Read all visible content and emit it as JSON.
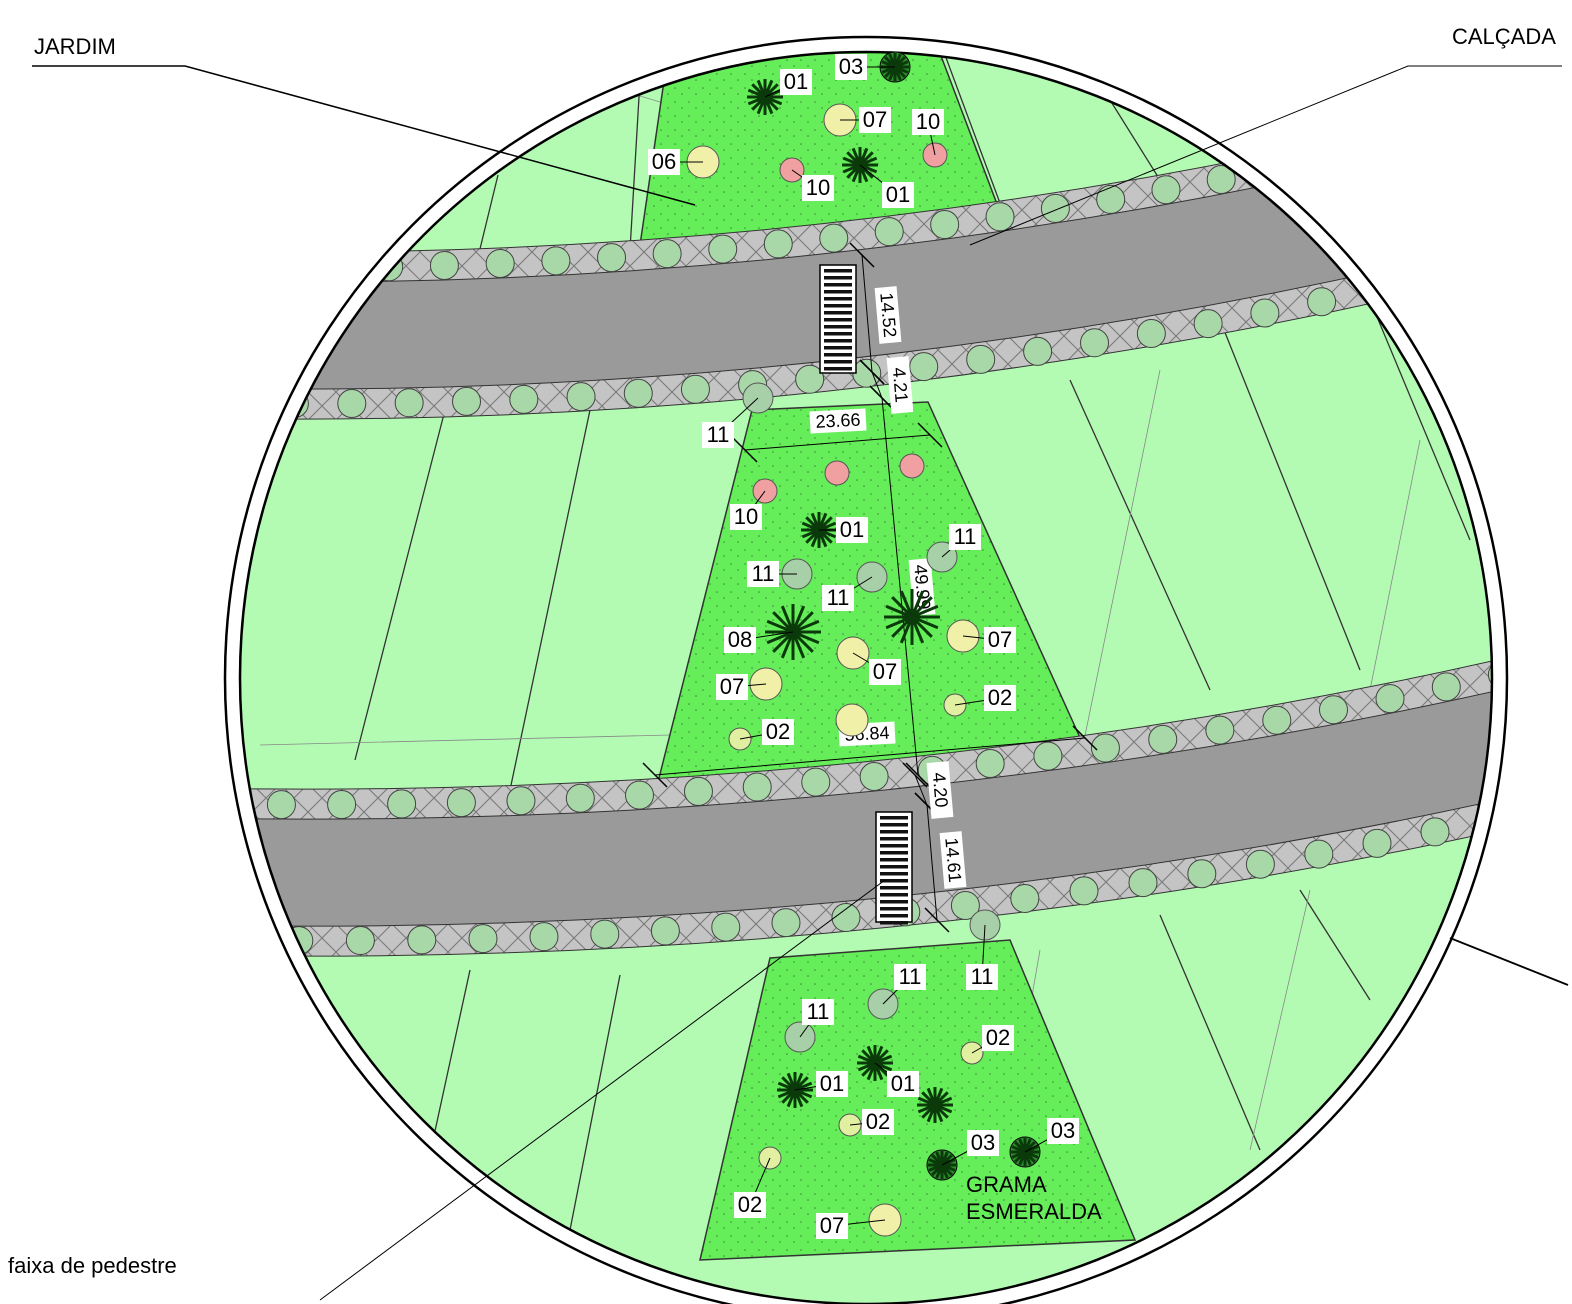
{
  "callouts": {
    "jardim": "JARDIM",
    "calcada": "CALÇADA",
    "faixa": "faixa de pedestre"
  },
  "grass_label": [
    "GRAMA",
    "ESMERALDA"
  ],
  "dimensions": [
    "14.52",
    "4.21",
    "23.66",
    "49.99",
    "56.84",
    "4.20",
    "14.61"
  ],
  "plant_tags": [
    "03",
    "01",
    "07",
    "10",
    "06",
    "10",
    "01",
    "11",
    "10",
    "01",
    "11",
    "11",
    "11",
    "08",
    "07",
    "07",
    "07",
    "02",
    "02",
    "11",
    "11",
    "11",
    "02",
    "01",
    "01",
    "02",
    "03",
    "03",
    "02",
    "07"
  ]
}
